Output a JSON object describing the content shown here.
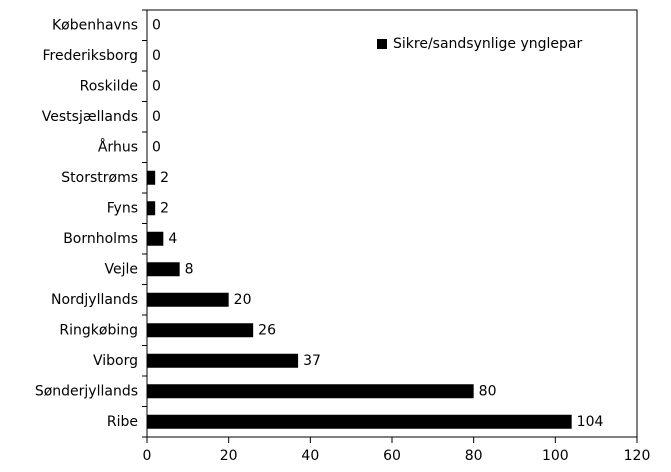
{
  "chart_data": {
    "type": "bar",
    "orientation": "horizontal",
    "categories": [
      "Københavns",
      "Frederiksborg",
      "Roskilde",
      "Vestsjællands",
      "Århus",
      "Storstrøms",
      "Fyns",
      "Bornholms",
      "Vejle",
      "Nordjyllands",
      "Ringkøbing",
      "Viborg",
      "Sønderjyllands",
      "Ribe"
    ],
    "series": [
      {
        "name": "Sikre/sandsynlige ynglepar",
        "color": "#000000",
        "values": [
          0,
          0,
          0,
          0,
          0,
          2,
          2,
          4,
          8,
          20,
          26,
          37,
          80,
          104
        ]
      }
    ],
    "xlim": [
      0,
      120
    ],
    "xticks": [
      0,
      20,
      40,
      60,
      80,
      100,
      120
    ],
    "legend": "upper right",
    "grid": false
  }
}
